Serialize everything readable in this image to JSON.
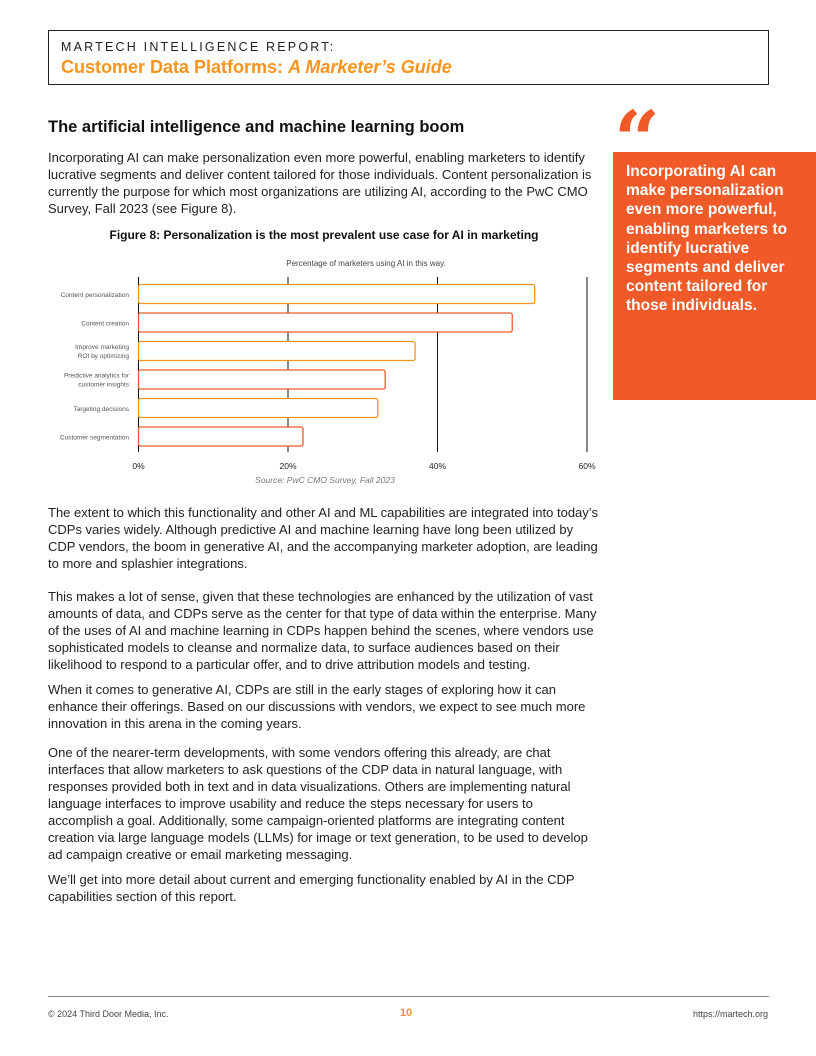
{
  "header": {
    "kicker": "MARTECH INTELLIGENCE REPORT:",
    "title_main": "Customer Data Platforms: ",
    "title_italic": "A Marketer’s Guide"
  },
  "section_title": "The artificial intelligence and machine learning boom",
  "paragraphs": [
    "Incorporating AI can make personalization even more powerful, enabling marketers to identify lucrative segments and deliver content tailored for those individuals. Content personalization is currently the purpose for which most organizations are utilizing AI, according to the PwC CMO Survey, Fall 2023 (see Figure 8).",
    "The extent to which this functionality and other AI and ML capabilities are integrated into today’s CDPs varies widely. Although predictive AI and machine learning have long been utilized by CDP vendors, the boom in generative AI, and the accompanying marketer adoption, are leading to more and splashier integrations.",
    "This makes a lot of sense, given that these technologies are enhanced by the utilization of vast amounts of data, and CDPs serve as the center for that type of data within the enterprise. Many of the uses of AI and machine learning in CDPs happen behind the scenes, where vendors use sophisticated models to cleanse and normalize data, to surface audiences based on their likelihood to respond to a particular offer, and to drive attribution models and testing.",
    "When it comes to generative AI, CDPs are still in the early stages of exploring how it can enhance their offerings. Based on our discussions with vendors, we expect to see much more innovation in this arena in the coming years.",
    "One of the nearer-term developments, with some vendors offering this already, are chat interfaces that allow marketers to ask questions of the CDP data in natural language, with responses provided both in text and in data visualizations. Others are implementing natural language interfaces to improve usability and reduce the steps necessary for users to accomplish a goal. Additionally, some campaign-oriented platforms are integrating content creation via large language models (LLMs) for image or text generation, to be used to develop ad campaign creative or email marketing messaging.",
    "We’ll get into more detail about current and emerging functionality enabled by AI in the CDP capabilities section of this report."
  ],
  "figure_title": "Figure 8: Personalization is the most prevalent use case for AI in marketing",
  "pull_quote": "Incorporating AI can make personalization even more powerful, enabling marketers to identify lucrative segments and deliver content tailored for those individuals.",
  "chart_data": {
    "type": "bar",
    "orientation": "horizontal",
    "title": "Percentage of marketers using AI in this way.",
    "categories": [
      "Content personalization",
      "Content creation",
      "Improve marketing ROI by optimizing",
      "Predictive analytics for customer insights",
      "Targeting decisions",
      "Customer segmentation"
    ],
    "values": [
      53,
      50,
      37,
      33,
      32,
      22
    ],
    "xlim": [
      0,
      60
    ],
    "ticks": [
      "0%",
      "20%",
      "40%",
      "60%"
    ],
    "grid": true,
    "bar_colors": [
      "#f7941d",
      "#f05a28",
      "#f7941d",
      "#f05a28",
      "#f7941d",
      "#f05a28"
    ],
    "source": "Source: PwC CMO Survey, Fall 2023"
  },
  "footer": {
    "copyright": "© 2024 Third Door Media, Inc.",
    "page": "10",
    "url": "https://martech.org"
  },
  "colors": {
    "accent": "#f05a28",
    "title_orange": "#f7941d"
  }
}
